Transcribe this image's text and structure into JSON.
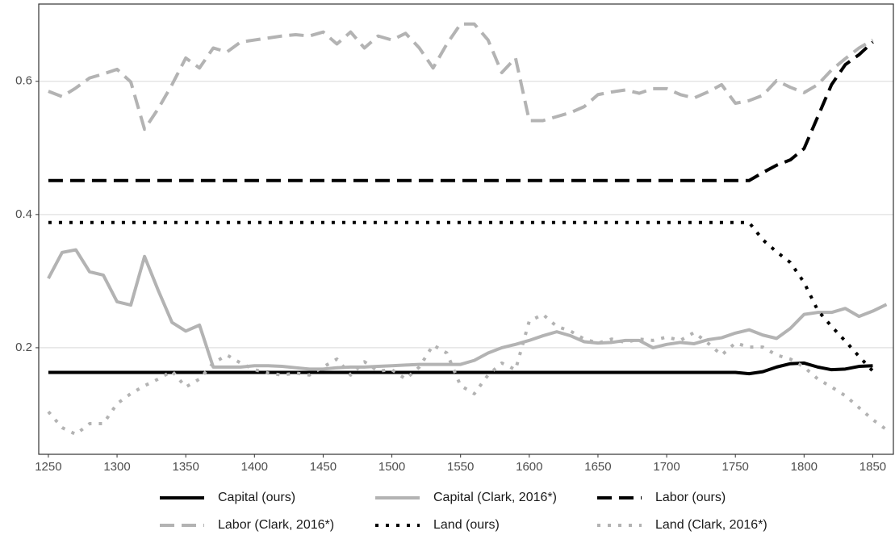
{
  "chart_data": {
    "type": "line",
    "x": [
      1250,
      1260,
      1270,
      1280,
      1290,
      1300,
      1310,
      1320,
      1330,
      1340,
      1350,
      1360,
      1370,
      1380,
      1390,
      1400,
      1410,
      1420,
      1430,
      1440,
      1450,
      1460,
      1470,
      1480,
      1490,
      1500,
      1510,
      1520,
      1530,
      1540,
      1550,
      1560,
      1570,
      1580,
      1590,
      1600,
      1610,
      1620,
      1630,
      1640,
      1650,
      1660,
      1670,
      1680,
      1690,
      1700,
      1710,
      1720,
      1730,
      1740,
      1750,
      1760,
      1770,
      1780,
      1790,
      1800,
      1810,
      1820,
      1830,
      1840,
      1850,
      1860
    ],
    "xlim": [
      1243,
      1865
    ],
    "xticks": [
      1250,
      1300,
      1350,
      1400,
      1450,
      1500,
      1550,
      1600,
      1650,
      1700,
      1750,
      1800,
      1850
    ],
    "ylim": [
      0.04,
      0.716
    ],
    "yticks": [
      0.2,
      0.4,
      0.6
    ],
    "grid": true,
    "legend": "bottom",
    "series": [
      {
        "name": "Capital (ours)",
        "color": "#000000",
        "style": "solid",
        "values": [
          0.163,
          0.163,
          0.163,
          0.163,
          0.163,
          0.163,
          0.163,
          0.163,
          0.163,
          0.163,
          0.163,
          0.163,
          0.163,
          0.163,
          0.163,
          0.163,
          0.163,
          0.163,
          0.163,
          0.163,
          0.163,
          0.163,
          0.163,
          0.163,
          0.163,
          0.163,
          0.163,
          0.163,
          0.163,
          0.163,
          0.163,
          0.163,
          0.163,
          0.163,
          0.163,
          0.163,
          0.163,
          0.163,
          0.163,
          0.163,
          0.163,
          0.163,
          0.163,
          0.163,
          0.163,
          0.163,
          0.163,
          0.163,
          0.163,
          0.163,
          0.163,
          0.161,
          0.164,
          0.171,
          0.176,
          0.177,
          0.171,
          0.167,
          0.168,
          0.172,
          0.173,
          null
        ]
      },
      {
        "name": "Capital (Clark, 2016*)",
        "color": "#b3b3b3",
        "style": "solid",
        "values": [
          0.304,
          0.343,
          0.347,
          0.314,
          0.309,
          0.269,
          0.264,
          0.337,
          0.286,
          0.238,
          0.225,
          0.234,
          0.171,
          0.171,
          0.171,
          0.173,
          0.173,
          0.172,
          0.17,
          0.168,
          0.168,
          0.17,
          0.171,
          0.171,
          0.172,
          0.173,
          0.174,
          0.175,
          0.175,
          0.175,
          0.175,
          0.181,
          0.192,
          0.2,
          0.205,
          0.211,
          0.218,
          0.224,
          0.218,
          0.209,
          0.207,
          0.208,
          0.211,
          0.211,
          0.2,
          0.205,
          0.208,
          0.206,
          0.212,
          0.215,
          0.222,
          0.227,
          0.219,
          0.214,
          0.229,
          0.25,
          0.253,
          0.253,
          0.259,
          0.247,
          0.255,
          0.265
        ]
      },
      {
        "name": "Labor (ours)",
        "color": "#000000",
        "style": "dashed",
        "values": [
          0.451,
          0.451,
          0.451,
          0.451,
          0.451,
          0.451,
          0.451,
          0.451,
          0.451,
          0.451,
          0.451,
          0.451,
          0.451,
          0.451,
          0.451,
          0.451,
          0.451,
          0.451,
          0.451,
          0.451,
          0.451,
          0.451,
          0.451,
          0.451,
          0.451,
          0.451,
          0.451,
          0.451,
          0.451,
          0.451,
          0.451,
          0.451,
          0.451,
          0.451,
          0.451,
          0.451,
          0.451,
          0.451,
          0.451,
          0.451,
          0.451,
          0.451,
          0.451,
          0.451,
          0.451,
          0.451,
          0.451,
          0.451,
          0.451,
          0.451,
          0.451,
          0.451,
          0.463,
          0.474,
          0.482,
          0.499,
          0.547,
          0.595,
          0.625,
          0.64,
          0.659,
          null
        ]
      },
      {
        "name": "Labor (Clark, 2016*)",
        "color": "#b3b3b3",
        "style": "dashed",
        "values": [
          0.585,
          0.577,
          0.59,
          0.605,
          0.611,
          0.618,
          0.599,
          0.528,
          0.559,
          0.595,
          0.635,
          0.62,
          0.65,
          0.644,
          0.659,
          0.662,
          0.665,
          0.668,
          0.67,
          0.668,
          0.674,
          0.656,
          0.674,
          0.65,
          0.668,
          0.662,
          0.672,
          0.65,
          0.62,
          0.656,
          0.686,
          0.686,
          0.662,
          0.613,
          0.635,
          0.541,
          0.541,
          0.547,
          0.553,
          0.562,
          0.58,
          0.584,
          0.587,
          0.582,
          0.589,
          0.589,
          0.58,
          0.575,
          0.584,
          0.595,
          0.567,
          0.571,
          0.579,
          0.601,
          0.591,
          0.583,
          0.595,
          0.617,
          0.634,
          0.65,
          0.662,
          null
        ]
      },
      {
        "name": "Land (ours)",
        "color": "#000000",
        "style": "dotted",
        "values": [
          0.388,
          0.388,
          0.388,
          0.388,
          0.388,
          0.388,
          0.388,
          0.388,
          0.388,
          0.388,
          0.388,
          0.388,
          0.388,
          0.388,
          0.388,
          0.388,
          0.388,
          0.388,
          0.388,
          0.388,
          0.388,
          0.388,
          0.388,
          0.388,
          0.388,
          0.388,
          0.388,
          0.388,
          0.388,
          0.388,
          0.388,
          0.388,
          0.388,
          0.388,
          0.388,
          0.388,
          0.388,
          0.388,
          0.388,
          0.388,
          0.388,
          0.388,
          0.388,
          0.388,
          0.388,
          0.388,
          0.388,
          0.388,
          0.388,
          0.388,
          0.388,
          0.388,
          0.362,
          0.344,
          0.328,
          0.298,
          0.256,
          0.232,
          0.21,
          0.187,
          0.165,
          null
        ]
      },
      {
        "name": "Land (Clark, 2016*)",
        "color": "#b3b3b3",
        "style": "dotted",
        "values": [
          0.104,
          0.08,
          0.07,
          0.086,
          0.086,
          0.116,
          0.131,
          0.143,
          0.153,
          0.165,
          0.141,
          0.153,
          0.177,
          0.189,
          0.177,
          0.167,
          0.162,
          0.159,
          0.162,
          0.159,
          0.171,
          0.183,
          0.159,
          0.179,
          0.165,
          0.167,
          0.153,
          0.171,
          0.204,
          0.192,
          0.143,
          0.131,
          0.159,
          0.177,
          0.167,
          0.24,
          0.25,
          0.232,
          0.225,
          0.213,
          0.207,
          0.213,
          0.208,
          0.213,
          0.211,
          0.216,
          0.211,
          0.223,
          0.207,
          0.189,
          0.207,
          0.201,
          0.201,
          0.189,
          0.183,
          0.171,
          0.153,
          0.141,
          0.128,
          0.11,
          0.092,
          0.077
        ]
      }
    ]
  }
}
